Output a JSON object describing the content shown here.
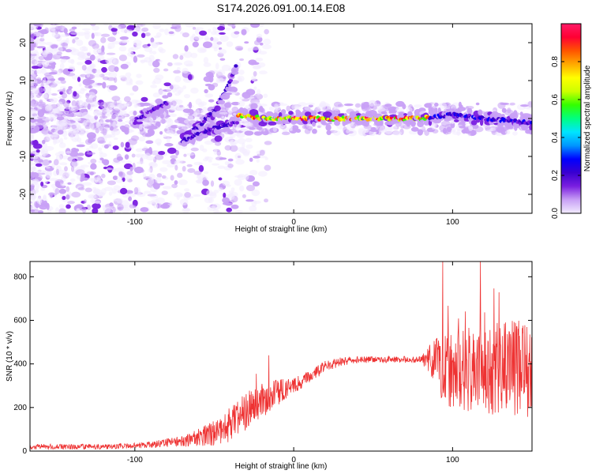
{
  "title": "S174.2026.091.00.14.E08",
  "chart_data": [
    {
      "type": "heatmap",
      "name": "spectrogram",
      "xlabel": "Height of straight line (km)",
      "ylabel": "Frequency (Hz)",
      "xlim": [
        -166,
        150
      ],
      "ylim": [
        -25,
        25
      ],
      "xticks": [
        -100,
        0,
        100
      ],
      "yticks": [
        -20,
        -10,
        0,
        10,
        20
      ],
      "colorbar": {
        "label": "Normalized spectral amplitude",
        "range": [
          0,
          1
        ],
        "ticks": [
          "0.0",
          "0.2",
          "0.4",
          "0.6",
          "0.8"
        ],
        "tick_values": [
          0,
          0.2,
          0.4,
          0.6,
          0.8
        ],
        "colormap": [
          "#f2ebff",
          "#c8a0f5",
          "#7a1fe0",
          "#3a00d0",
          "#0000ff",
          "#0096ff",
          "#00e5ff",
          "#00ff80",
          "#33ff00",
          "#ccff00",
          "#ffff00",
          "#ffaa00",
          "#ff5500",
          "#ff0033",
          "#ff1a66"
        ]
      },
      "ridges": [
        {
          "x": [
            -100,
            -90,
            -80
          ],
          "y": [
            -1,
            2,
            4
          ],
          "amp": 0.2
        },
        {
          "x": [
            -70,
            -60,
            -50,
            -42,
            -36
          ],
          "y": [
            -5,
            -2,
            2,
            8,
            14
          ],
          "amp": 0.25
        },
        {
          "x": [
            -70,
            -60,
            -45,
            -35
          ],
          "y": [
            -6,
            -4,
            -2,
            -1
          ],
          "amp": 0.25
        },
        {
          "x": [
            -35,
            -20,
            0,
            20,
            40,
            60,
            80,
            100,
            120,
            150
          ],
          "y": [
            1,
            0,
            0,
            0,
            0,
            0,
            0,
            1,
            0,
            -1
          ],
          "amp": 0.9
        }
      ]
    },
    {
      "type": "line",
      "name": "snr",
      "xlabel": "Height of straight line (km)",
      "ylabel": "SNR (10 * v/v)",
      "xlim": [
        -166,
        150
      ],
      "ylim": [
        0,
        870
      ],
      "xticks": [
        -100,
        0,
        100
      ],
      "yticks": [
        0,
        200,
        400,
        600,
        800
      ],
      "series": [
        {
          "name": "SNR",
          "color": "#ee3333",
          "envelope_x": [
            -166,
            -120,
            -90,
            -70,
            -50,
            -40,
            -30,
            -20,
            -10,
            0,
            10,
            20,
            30,
            40,
            60,
            80,
            87,
            95,
            110,
            125,
            140,
            150
          ],
          "envelope_mean": [
            20,
            20,
            30,
            45,
            80,
            120,
            180,
            230,
            270,
            300,
            340,
            390,
            410,
            420,
            420,
            420,
            420,
            380,
            380,
            370,
            370,
            380
          ],
          "envelope_noise": [
            12,
            12,
            15,
            25,
            60,
            80,
            90,
            80,
            60,
            35,
            30,
            25,
            20,
            15,
            15,
            15,
            80,
            170,
            200,
            220,
            230,
            220
          ]
        }
      ]
    }
  ]
}
